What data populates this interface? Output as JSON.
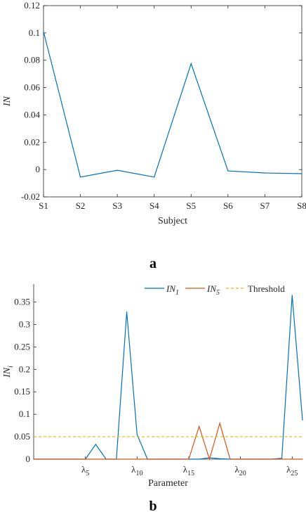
{
  "chart_data": [
    {
      "type": "line",
      "panel_label": "a",
      "xlabel": "Subject",
      "ylabel": "IN",
      "categories": [
        "S1",
        "S2",
        "S3",
        "S4",
        "S5",
        "S6",
        "S7",
        "S8"
      ],
      "series": [
        {
          "color": "#0072BD",
          "values": [
            0.101,
            -0.0055,
            -0.0005,
            -0.0055,
            0.0775,
            -0.001,
            -0.0025,
            -0.003
          ]
        }
      ],
      "ylim": [
        -0.02,
        0.12
      ],
      "yticks": [
        "-0.02",
        "0",
        "0.02",
        "0.04",
        "0.06",
        "0.08",
        "0.1",
        "0.12"
      ],
      "grid": false
    },
    {
      "type": "line",
      "panel_label": "b",
      "xlabel": "Parameter",
      "ylabel": "IN",
      "ylabel_sub": "i",
      "xlim": [
        0,
        26
      ],
      "ylim": [
        0,
        0.39
      ],
      "xticks": [
        {
          "base": "λ",
          "sub": "5",
          "x": 5
        },
        {
          "base": "λ",
          "sub": "10",
          "x": 10
        },
        {
          "base": "λ",
          "sub": "15",
          "x": 15
        },
        {
          "base": "λ",
          "sub": "20",
          "x": 20
        },
        {
          "base": "λ",
          "sub": "25",
          "x": 25
        }
      ],
      "yticks": [
        "0",
        "0.05",
        "0.1",
        "0.15",
        "0.2",
        "0.25",
        "0.3",
        "0.35"
      ],
      "legend": {
        "placement": "top-right",
        "entries": [
          {
            "base": "IN",
            "sub": "1",
            "color": "#0072BD",
            "style": "solid"
          },
          {
            "base": "IN",
            "sub": "5",
            "color": "#D95319",
            "style": "solid"
          },
          {
            "text": "Threshold",
            "color": "#EDB120",
            "style": "dashed"
          }
        ]
      },
      "series": [
        {
          "name": "IN1",
          "color": "#0072BD",
          "x": [
            0,
            5,
            6,
            7,
            8,
            9,
            10,
            11,
            12,
            13,
            14,
            15,
            16,
            17,
            18,
            19,
            20,
            21,
            22,
            23,
            24,
            25,
            26
          ],
          "values": [
            0,
            0,
            0.033,
            0,
            0,
            0.328,
            0.055,
            0,
            0,
            0,
            0,
            0,
            0,
            0.003,
            0.001,
            0,
            0,
            0,
            0,
            0,
            0.002,
            0.365,
            0.087
          ]
        },
        {
          "name": "IN5",
          "color": "#D95319",
          "x": [
            0,
            15,
            16,
            17,
            18,
            19,
            20,
            26
          ],
          "values": [
            0,
            0,
            0.073,
            0,
            0.08,
            0,
            0,
            0
          ]
        },
        {
          "name": "Threshold",
          "color": "#EDB120",
          "dashed": true,
          "x": [
            0,
            26
          ],
          "values": [
            0.05,
            0.05
          ]
        }
      ],
      "grid": false
    }
  ]
}
